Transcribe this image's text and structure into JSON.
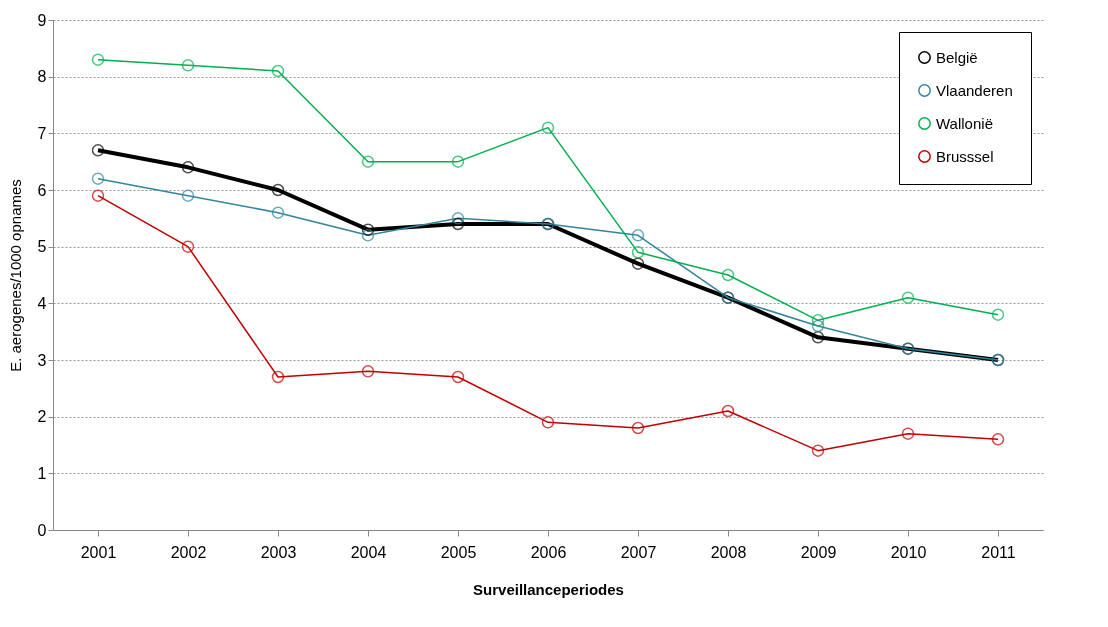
{
  "chart_data": {
    "type": "line",
    "xlabel": "Surveillanceperiodes",
    "ylabel": "E. aerogenes/1000 opnames",
    "categories": [
      "2001",
      "2002",
      "2003",
      "2004",
      "2005",
      "2006",
      "2007",
      "2008",
      "2009",
      "2010",
      "2011"
    ],
    "series": [
      {
        "name": "België",
        "color": "#000000",
        "values": [
          6.7,
          6.4,
          6.0,
          5.3,
          5.4,
          5.4,
          4.7,
          4.1,
          3.4,
          3.2,
          3.0
        ]
      },
      {
        "name": "Vlaanderen",
        "color": "#31859c",
        "values": [
          6.2,
          5.9,
          5.6,
          5.2,
          5.5,
          5.4,
          5.2,
          4.1,
          3.6,
          3.2,
          3.0
        ]
      },
      {
        "name": "Wallonië",
        "color": "#00b050",
        "values": [
          8.3,
          8.2,
          8.1,
          6.5,
          6.5,
          7.1,
          4.9,
          4.5,
          3.7,
          4.1,
          3.8
        ]
      },
      {
        "name": "Brusssel",
        "color": "#c00000",
        "values": [
          5.9,
          5.0,
          2.7,
          2.8,
          2.7,
          1.9,
          1.8,
          2.1,
          1.4,
          1.7,
          1.6
        ]
      }
    ],
    "ylim": [
      0,
      9
    ],
    "yticks": [
      0,
      1,
      2,
      3,
      4,
      5,
      6,
      7,
      8,
      9
    ],
    "grid": "y",
    "legend": "top right",
    "marker": "circle",
    "line_style": "solid"
  }
}
